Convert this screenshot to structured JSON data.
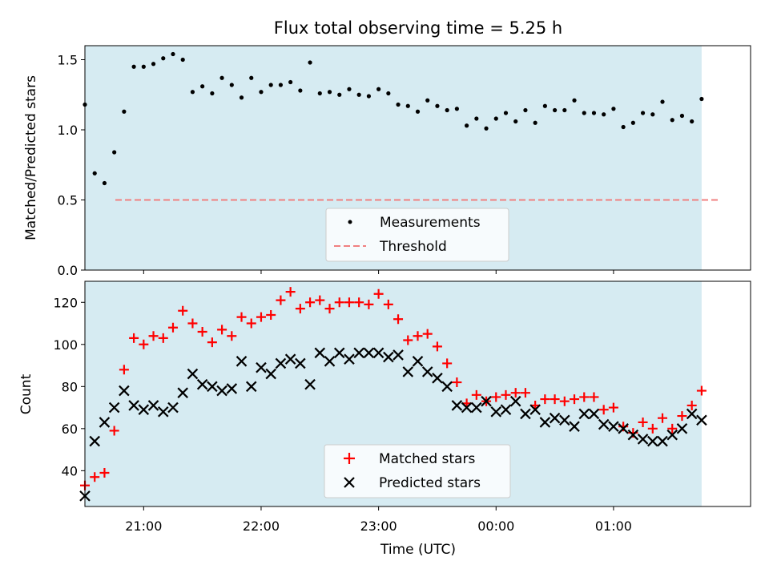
{
  "chart_data": {
    "type": "scatter",
    "title": "Flux total observing time = 5.25 h",
    "xlabel": "Time (UTC)",
    "colors": {
      "observing_window": "#add8e6",
      "measurements": "#000000",
      "threshold": "#f08080",
      "matched": "#ff0000",
      "predicted": "#000000"
    },
    "x_axis": {
      "type": "time",
      "range": [
        "20:30",
        "02:10"
      ],
      "ticks": [
        "21:00",
        "22:00",
        "23:00",
        "00:00",
        "01:00"
      ]
    },
    "observing_window": {
      "start": "20:30",
      "end": "01:45"
    },
    "times": [
      "20:30",
      "20:35",
      "20:40",
      "20:45",
      "20:50",
      "20:55",
      "21:00",
      "21:05",
      "21:10",
      "21:15",
      "21:20",
      "21:25",
      "21:30",
      "21:35",
      "21:40",
      "21:45",
      "21:50",
      "21:55",
      "22:00",
      "22:05",
      "22:10",
      "22:15",
      "22:20",
      "22:25",
      "22:30",
      "22:35",
      "22:40",
      "22:45",
      "22:50",
      "22:55",
      "23:00",
      "23:05",
      "23:10",
      "23:15",
      "23:20",
      "23:25",
      "23:30",
      "23:35",
      "23:40",
      "23:45",
      "23:50",
      "23:55",
      "00:00",
      "00:05",
      "00:10",
      "00:15",
      "00:20",
      "00:25",
      "00:30",
      "00:35",
      "00:40",
      "00:45",
      "00:50",
      "00:55",
      "01:00",
      "01:05",
      "01:10",
      "01:15",
      "01:20",
      "01:25",
      "01:30",
      "01:35",
      "01:40",
      "01:45"
    ],
    "panels": [
      {
        "ylabel": "Matched/Predicted stars",
        "ylim": [
          0,
          1.6
        ],
        "yticks": [
          "0.0",
          "0.5",
          "1.0",
          "1.5"
        ],
        "series": [
          {
            "name": "Measurements",
            "marker": "dot",
            "values": [
              1.18,
              0.69,
              0.62,
              0.84,
              1.13,
              1.45,
              1.45,
              1.47,
              1.51,
              1.54,
              1.5,
              1.27,
              1.31,
              1.26,
              1.37,
              1.32,
              1.23,
              1.37,
              1.27,
              1.32,
              1.32,
              1.34,
              1.28,
              1.48,
              1.26,
              1.27,
              1.25,
              1.29,
              1.25,
              1.24,
              1.29,
              1.26,
              1.18,
              1.17,
              1.13,
              1.21,
              1.17,
              1.14,
              1.15,
              1.03,
              1.08,
              1.01,
              1.08,
              1.12,
              1.06,
              1.14,
              1.05,
              1.17,
              1.14,
              1.14,
              1.21,
              1.12,
              1.12,
              1.11,
              1.15,
              1.02,
              1.05,
              1.12,
              1.11,
              1.2,
              1.07,
              1.1,
              1.06,
              1.22
            ]
          }
        ],
        "threshold": {
          "name": "Threshold",
          "value": 0.5
        },
        "legend": [
          "Measurements",
          "Threshold"
        ],
        "legend_position": "lower-center"
      },
      {
        "ylabel": "Count",
        "ylim": [
          23,
          130
        ],
        "yticks": [
          "40",
          "60",
          "80",
          "100",
          "120"
        ],
        "series": [
          {
            "name": "Matched stars",
            "marker": "plus",
            "values": [
              33,
              37,
              39,
              59,
              88,
              103,
              100,
              104,
              103,
              108,
              116,
              110,
              106,
              101,
              107,
              104,
              113,
              110,
              113,
              114,
              121,
              125,
              117,
              120,
              121,
              117,
              120,
              120,
              120,
              119,
              124,
              119,
              112,
              102,
              104,
              105,
              99,
              91,
              82,
              72,
              76,
              73,
              75,
              76,
              77,
              77,
              71,
              74,
              74,
              73,
              74,
              75,
              75,
              69,
              70,
              61,
              58,
              63,
              60,
              65,
              60,
              66,
              71,
              78
            ]
          },
          {
            "name": "Predicted stars",
            "marker": "x",
            "values": [
              28,
              54,
              63,
              70,
              78,
              71,
              69,
              71,
              68,
              70,
              77,
              86,
              81,
              80,
              78,
              79,
              92,
              80,
              89,
              86,
              91,
              93,
              91,
              81,
              96,
              92,
              96,
              93,
              96,
              96,
              96,
              94,
              95,
              87,
              92,
              87,
              84,
              80,
              71,
              70,
              70,
              73,
              68,
              69,
              73,
              67,
              69,
              63,
              65,
              64,
              61,
              67,
              67,
              62,
              61,
              60,
              57,
              55,
              54,
              54,
              57,
              60,
              67,
              64
            ]
          }
        ],
        "legend": [
          "Matched stars",
          "Predicted stars"
        ],
        "legend_position": "lower-center"
      }
    ]
  }
}
